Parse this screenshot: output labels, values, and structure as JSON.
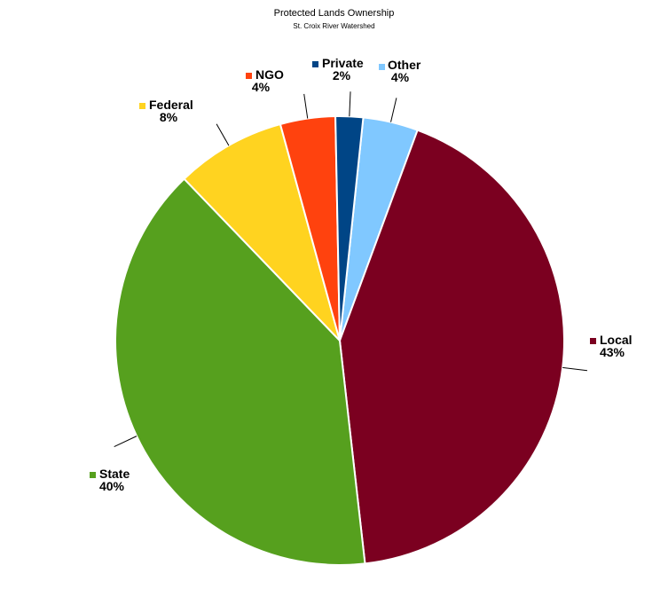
{
  "chart_data": {
    "type": "pie",
    "title": "Protected Lands Ownership",
    "subtitle": "St. Croix River Watershed",
    "slices": [
      {
        "label": "Other",
        "value": 4,
        "pct_text": "4%",
        "color": "#80c8ff"
      },
      {
        "label": "Local",
        "value": 43,
        "pct_text": "43%",
        "color": "#7b0020"
      },
      {
        "label": "State",
        "value": 40,
        "pct_text": "40%",
        "color": "#56a01e"
      },
      {
        "label": "Federal",
        "value": 8,
        "pct_text": "8%",
        "color": "#ffd320"
      },
      {
        "label": "NGO",
        "value": 4,
        "pct_text": "4%",
        "color": "#ff420e"
      },
      {
        "label": "Private",
        "value": 2,
        "pct_text": "2%",
        "color": "#004586"
      }
    ],
    "legend": "none",
    "label_style": "callout"
  }
}
